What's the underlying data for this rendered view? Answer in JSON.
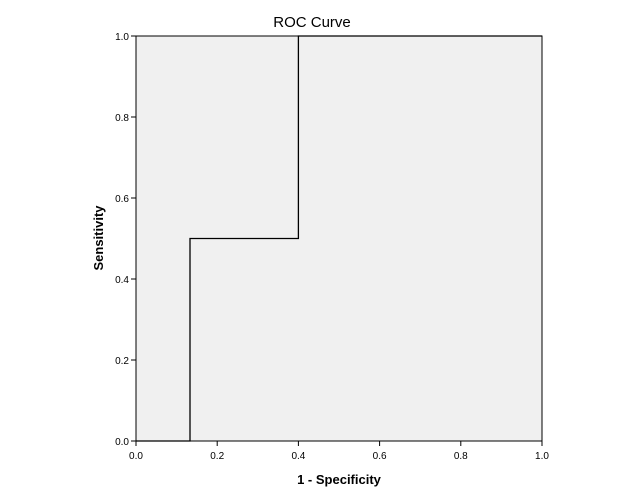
{
  "chart_data": {
    "type": "line",
    "title": "ROC Curve",
    "xlabel": "1 - Specificity",
    "ylabel": "Sensitivity",
    "xlim": [
      0,
      1
    ],
    "ylim": [
      0,
      1
    ],
    "x_ticks": [
      "0.0",
      "0.2",
      "0.4",
      "0.6",
      "0.8",
      "1.0"
    ],
    "y_ticks": [
      "0.0",
      "0.2",
      "0.4",
      "0.6",
      "0.8",
      "1.0"
    ],
    "grid": false,
    "series": [
      {
        "x": [
          0.0,
          0.133,
          0.133,
          0.4,
          0.4,
          1.0
        ],
        "y": [
          0.0,
          0.0,
          0.5,
          0.5,
          1.0,
          1.0
        ]
      }
    ],
    "colors": {
      "plot_bg": "#f0f0f0",
      "line": "#000000",
      "frame": "#000000"
    }
  }
}
